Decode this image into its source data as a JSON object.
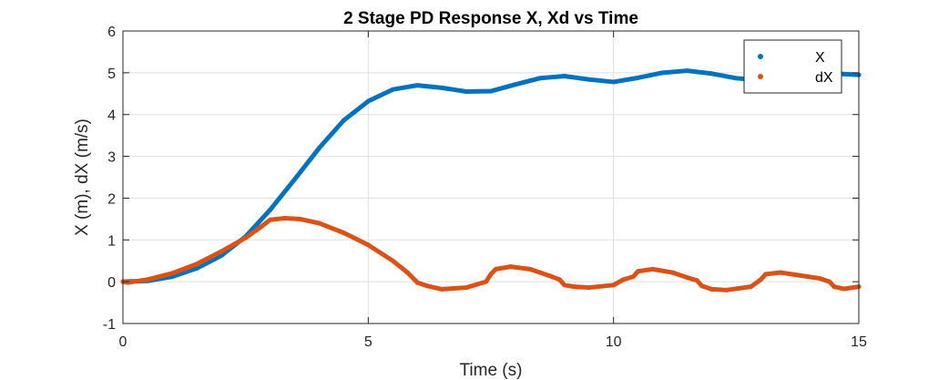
{
  "chart_data": {
    "type": "scatter",
    "title": "2 Stage PD Response  X, Xd vs Time",
    "xlabel": "Time (s)",
    "ylabel": "X (m), dX (m/s)",
    "xlim": [
      0,
      15
    ],
    "ylim": [
      -1,
      6
    ],
    "xticks": [
      0,
      5,
      10,
      15
    ],
    "yticks": [
      -1,
      0,
      1,
      2,
      3,
      4,
      5,
      6
    ],
    "xtick_labels": [
      "0",
      "5",
      "10",
      "15"
    ],
    "ytick_labels": [
      "-1",
      "0",
      "1",
      "2",
      "3",
      "4",
      "5",
      "6"
    ],
    "grid": true,
    "legend_position": "top-right",
    "series": [
      {
        "name": "X",
        "color": "#0072BD",
        "x": [
          0,
          0.5,
          1.0,
          1.5,
          2.0,
          2.5,
          3.0,
          3.5,
          4.0,
          4.5,
          5.0,
          5.5,
          6.0,
          6.5,
          7.0,
          7.5,
          8.0,
          8.5,
          9.0,
          9.5,
          10.0,
          10.5,
          11.0,
          11.5,
          12.0,
          12.5,
          13.0,
          13.5,
          14.0,
          14.5,
          15.0
        ],
        "y": [
          0.0,
          0.02,
          0.12,
          0.32,
          0.62,
          1.08,
          1.72,
          2.45,
          3.2,
          3.86,
          4.32,
          4.6,
          4.7,
          4.64,
          4.55,
          4.56,
          4.72,
          4.87,
          4.92,
          4.84,
          4.78,
          4.88,
          5.0,
          5.05,
          4.98,
          4.87,
          4.82,
          4.92,
          5.0,
          4.98,
          4.95
        ]
      },
      {
        "name": "dX",
        "color": "#D95319",
        "x": [
          0,
          0.1,
          0.5,
          1.0,
          1.5,
          2.0,
          2.5,
          2.8,
          3.0,
          3.3,
          3.6,
          4.0,
          4.5,
          5.0,
          5.5,
          5.8,
          6.0,
          6.2,
          6.5,
          7.0,
          7.4,
          7.5,
          7.6,
          7.9,
          8.3,
          8.7,
          8.9,
          9.0,
          9.2,
          9.5,
          10.0,
          10.2,
          10.4,
          10.5,
          10.8,
          11.2,
          11.5,
          11.7,
          11.8,
          12.0,
          12.3,
          12.8,
          13.0,
          13.1,
          13.4,
          13.8,
          14.2,
          14.4,
          14.5,
          14.7,
          15.0
        ],
        "y": [
          0.0,
          -0.02,
          0.05,
          0.2,
          0.42,
          0.72,
          1.05,
          1.3,
          1.48,
          1.52,
          1.5,
          1.4,
          1.17,
          0.88,
          0.5,
          0.22,
          -0.02,
          -0.1,
          -0.18,
          -0.14,
          0.0,
          0.18,
          0.3,
          0.36,
          0.3,
          0.14,
          0.05,
          -0.08,
          -0.12,
          -0.14,
          -0.08,
          0.05,
          0.12,
          0.25,
          0.3,
          0.22,
          0.1,
          0.03,
          -0.1,
          -0.18,
          -0.2,
          -0.12,
          0.05,
          0.18,
          0.22,
          0.15,
          0.08,
          0.0,
          -0.12,
          -0.17,
          -0.12
        ]
      }
    ]
  }
}
